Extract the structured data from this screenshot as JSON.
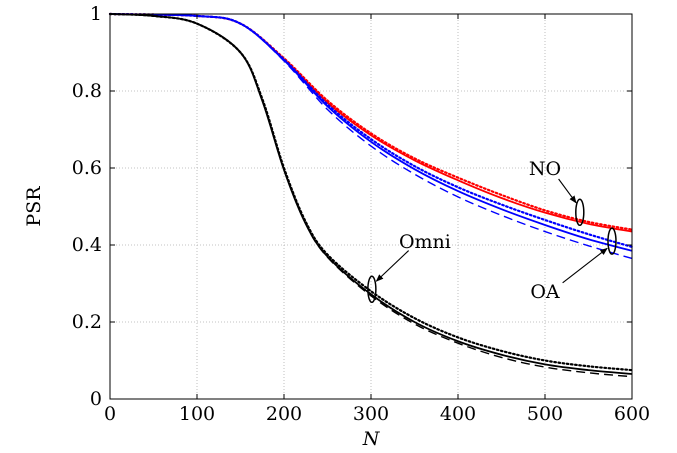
{
  "chart_data": {
    "type": "line",
    "title": "",
    "xlabel": "N",
    "ylabel": "PSR",
    "xlim": [
      0,
      600
    ],
    "ylim": [
      0,
      1
    ],
    "xticks": [
      0,
      100,
      200,
      300,
      400,
      500,
      600
    ],
    "yticks": [
      0,
      0.2,
      0.4,
      0.6,
      0.8,
      1
    ],
    "ytick_labels": [
      "0",
      "0.2",
      "0.4",
      "0.6",
      "0.8",
      "1"
    ],
    "grid": true,
    "legend": "none",
    "colors": {
      "red": "#ff0000",
      "blue": "#0000ff",
      "black": "#000000"
    },
    "series": [
      {
        "color": "#ff0000",
        "dash": "dotted",
        "points": [
          [
            0,
            1.0
          ],
          [
            100,
            0.995
          ],
          [
            150,
            0.975
          ],
          [
            200,
            0.885
          ],
          [
            250,
            0.775
          ],
          [
            300,
            0.69
          ],
          [
            350,
            0.625
          ],
          [
            400,
            0.575
          ],
          [
            450,
            0.53
          ],
          [
            500,
            0.49
          ],
          [
            550,
            0.46
          ],
          [
            600,
            0.44
          ]
        ]
      },
      {
        "color": "#ff0000",
        "dash": "solid",
        "points": [
          [
            0,
            1.0
          ],
          [
            100,
            0.995
          ],
          [
            150,
            0.975
          ],
          [
            200,
            0.882
          ],
          [
            250,
            0.77
          ],
          [
            300,
            0.685
          ],
          [
            350,
            0.62
          ],
          [
            400,
            0.568
          ],
          [
            450,
            0.522
          ],
          [
            500,
            0.484
          ],
          [
            550,
            0.455
          ],
          [
            600,
            0.435
          ]
        ]
      },
      {
        "color": "#0000ff",
        "dash": "dotted",
        "points": [
          [
            0,
            1.0
          ],
          [
            100,
            0.995
          ],
          [
            150,
            0.975
          ],
          [
            200,
            0.882
          ],
          [
            250,
            0.765
          ],
          [
            300,
            0.675
          ],
          [
            350,
            0.605
          ],
          [
            400,
            0.55
          ],
          [
            450,
            0.505
          ],
          [
            500,
            0.465
          ],
          [
            550,
            0.428
          ],
          [
            600,
            0.395
          ]
        ]
      },
      {
        "color": "#0000ff",
        "dash": "solid",
        "points": [
          [
            0,
            1.0
          ],
          [
            100,
            0.995
          ],
          [
            150,
            0.975
          ],
          [
            200,
            0.88
          ],
          [
            250,
            0.76
          ],
          [
            300,
            0.668
          ],
          [
            350,
            0.597
          ],
          [
            400,
            0.54
          ],
          [
            450,
            0.493
          ],
          [
            500,
            0.452
          ],
          [
            550,
            0.415
          ],
          [
            600,
            0.385
          ]
        ]
      },
      {
        "color": "#0000ff",
        "dash": "dashed",
        "points": [
          [
            0,
            1.0
          ],
          [
            100,
            0.995
          ],
          [
            150,
            0.975
          ],
          [
            200,
            0.878
          ],
          [
            250,
            0.752
          ],
          [
            300,
            0.657
          ],
          [
            350,
            0.584
          ],
          [
            400,
            0.525
          ],
          [
            450,
            0.477
          ],
          [
            500,
            0.435
          ],
          [
            550,
            0.398
          ],
          [
            600,
            0.365
          ]
        ]
      },
      {
        "color": "#000000",
        "dash": "dotted",
        "points": [
          [
            0,
            1.0
          ],
          [
            50,
            0.995
          ],
          [
            100,
            0.975
          ],
          [
            150,
            0.9
          ],
          [
            175,
            0.78
          ],
          [
            200,
            0.6
          ],
          [
            225,
            0.46
          ],
          [
            250,
            0.375
          ],
          [
            300,
            0.28
          ],
          [
            350,
            0.21
          ],
          [
            400,
            0.16
          ],
          [
            450,
            0.125
          ],
          [
            500,
            0.1
          ],
          [
            550,
            0.085
          ],
          [
            600,
            0.075
          ]
        ]
      },
      {
        "color": "#000000",
        "dash": "solid",
        "points": [
          [
            0,
            1.0
          ],
          [
            50,
            0.995
          ],
          [
            100,
            0.975
          ],
          [
            150,
            0.9
          ],
          [
            175,
            0.775
          ],
          [
            200,
            0.595
          ],
          [
            225,
            0.455
          ],
          [
            250,
            0.37
          ],
          [
            300,
            0.272
          ],
          [
            350,
            0.2
          ],
          [
            400,
            0.15
          ],
          [
            450,
            0.115
          ],
          [
            500,
            0.09
          ],
          [
            550,
            0.075
          ],
          [
            600,
            0.065
          ]
        ]
      },
      {
        "color": "#000000",
        "dash": "dashed",
        "points": [
          [
            0,
            1.0
          ],
          [
            50,
            0.995
          ],
          [
            100,
            0.975
          ],
          [
            150,
            0.9
          ],
          [
            175,
            0.775
          ],
          [
            200,
            0.595
          ],
          [
            225,
            0.455
          ],
          [
            250,
            0.368
          ],
          [
            300,
            0.268
          ],
          [
            350,
            0.195
          ],
          [
            400,
            0.145
          ],
          [
            450,
            0.108
          ],
          [
            500,
            0.083
          ],
          [
            550,
            0.068
          ],
          [
            600,
            0.058
          ]
        ]
      }
    ],
    "annotations": [
      {
        "text": "NO",
        "ellipse_at": [
          540,
          0.485
        ],
        "label_at": [
          500,
          0.6
        ]
      },
      {
        "text": "OA",
        "ellipse_at": [
          577,
          0.41
        ],
        "label_at": [
          500,
          0.28
        ]
      },
      {
        "text": "Omni",
        "ellipse_at": [
          301,
          0.285
        ],
        "label_at": [
          362,
          0.41
        ]
      }
    ]
  }
}
